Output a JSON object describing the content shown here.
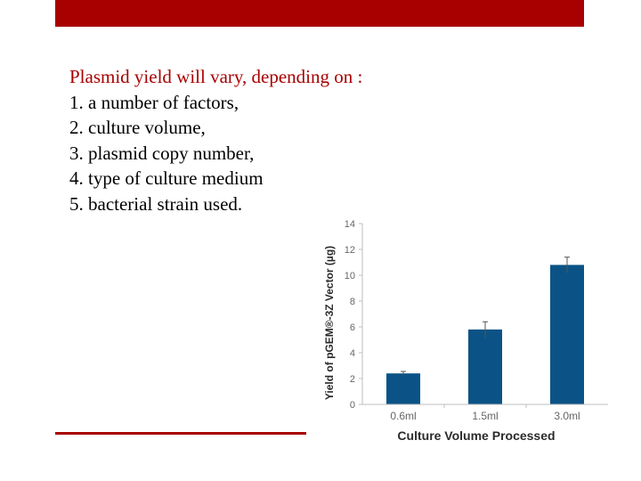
{
  "colors": {
    "accent": "#a80000",
    "bar": "#0b5386",
    "axis": "#bdbdbd",
    "tick_text": "#666666",
    "label_text": "#2b2b2b"
  },
  "slide": {
    "lead": "Plasmid yield will vary, depending on :",
    "items": [
      "1. a number of factors,",
      "2. culture volume,",
      "3. plasmid copy number,",
      "4. type of culture medium",
      "5. bacterial strain used."
    ]
  },
  "chart_data": {
    "type": "bar",
    "categories": [
      "0.6ml",
      "1.5ml",
      "3.0ml"
    ],
    "values": [
      2.4,
      5.8,
      10.8
    ],
    "errors": [
      0.15,
      0.6,
      0.6
    ],
    "xlabel": "Culture Volume Processed",
    "ylabel": "Yield of pGEM®-3Z Vector (µg)",
    "ylim": [
      0,
      14
    ],
    "yticks": [
      "0",
      "2",
      "4",
      "6",
      "8",
      "10",
      "12",
      "14"
    ],
    "grid": false
  }
}
